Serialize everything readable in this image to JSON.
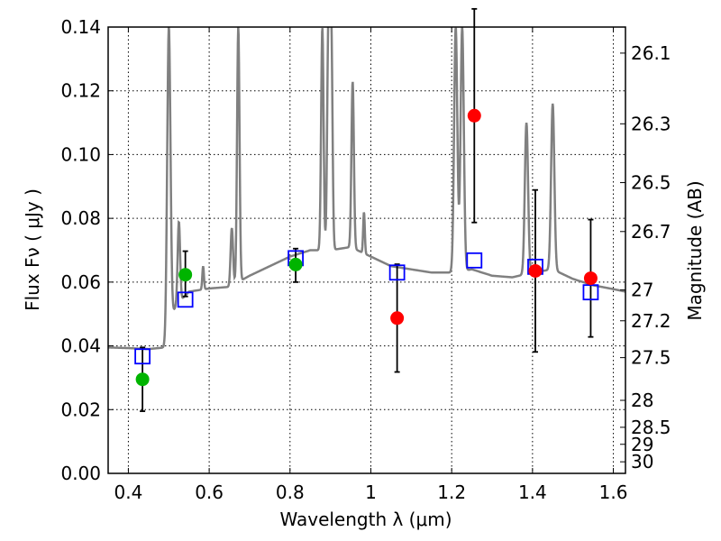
{
  "chart_data": {
    "type": "scatter",
    "xlabel": "Wavelength  λ (μm)",
    "ylabel": "Flux  Fν  ( μJy )",
    "y2label": "Magnitude (AB)",
    "xlim": [
      0.35,
      1.63
    ],
    "ylim": [
      0.0,
      0.14
    ],
    "grid": true,
    "x_ticks": [
      0.4,
      0.6,
      0.8,
      1.0,
      1.2,
      1.4,
      1.6
    ],
    "x_tick_labels": [
      "0.4",
      "0.6",
      "0.8",
      "1",
      "1.2",
      "1.4",
      "1.6"
    ],
    "y_ticks": [
      0.0,
      0.02,
      0.04,
      0.06,
      0.08,
      0.1,
      0.12,
      0.14
    ],
    "y_tick_labels": [
      "0.00",
      "0.02",
      "0.04",
      "0.06",
      "0.08",
      "0.10",
      "0.12",
      "0.14"
    ],
    "mag_ticks": [
      26.1,
      26.3,
      26.5,
      26.7,
      27,
      27.2,
      27.5,
      28,
      28.5,
      29,
      30
    ],
    "mag_tick_labels": [
      "26.1",
      "26.3",
      "26.5",
      "26.7",
      "27",
      "27.2",
      "27.5",
      "28",
      "28.5",
      "29",
      "30"
    ],
    "colors": {
      "sed": "#808080",
      "model": "#0000ff",
      "green": "#00b400",
      "red": "#ff0000",
      "error": "#000000"
    },
    "series": [
      {
        "marker": "circle",
        "color": "#00b400",
        "points": [
          {
            "x": 0.435,
            "y": 0.0295,
            "err_low": 0.0195,
            "err_high": 0.0395
          },
          {
            "x": 0.541,
            "y": 0.0623,
            "err_low": 0.0555,
            "err_high": 0.0697
          },
          {
            "x": 0.814,
            "y": 0.0655,
            "err_low": 0.06,
            "err_high": 0.0705
          }
        ]
      },
      {
        "marker": "circle",
        "color": "#ff0000",
        "points": [
          {
            "x": 1.065,
            "y": 0.0487,
            "err_low": 0.0318,
            "err_high": 0.0656
          },
          {
            "x": 1.256,
            "y": 0.1122,
            "err_low": 0.0787,
            "err_high": 0.1457
          },
          {
            "x": 1.407,
            "y": 0.0635,
            "err_low": 0.0381,
            "err_high": 0.0889
          },
          {
            "x": 1.544,
            "y": 0.0612,
            "err_low": 0.0428,
            "err_high": 0.0796
          }
        ]
      },
      {
        "marker": "open-square",
        "color": "#0000ff",
        "points": [
          {
            "x": 0.435,
            "y": 0.0367
          },
          {
            "x": 0.541,
            "y": 0.0545
          },
          {
            "x": 0.814,
            "y": 0.0675
          },
          {
            "x": 1.065,
            "y": 0.063
          },
          {
            "x": 1.256,
            "y": 0.0668
          },
          {
            "x": 1.407,
            "y": 0.0648
          },
          {
            "x": 1.544,
            "y": 0.0568
          }
        ]
      }
    ],
    "sed_continuum": [
      [
        0.35,
        0.0395
      ],
      [
        0.4,
        0.0393
      ],
      [
        0.45,
        0.039
      ],
      [
        0.49,
        0.0395
      ],
      [
        0.498,
        0.04
      ],
      [
        0.505,
        0.049
      ],
      [
        0.52,
        0.053
      ],
      [
        0.55,
        0.057
      ],
      [
        0.6,
        0.058
      ],
      [
        0.65,
        0.0585
      ],
      [
        0.7,
        0.062
      ],
      [
        0.75,
        0.065
      ],
      [
        0.8,
        0.068
      ],
      [
        0.85,
        0.07
      ],
      [
        0.9,
        0.07
      ],
      [
        0.95,
        0.071
      ],
      [
        1.0,
        0.068
      ],
      [
        1.05,
        0.065
      ],
      [
        1.1,
        0.064
      ],
      [
        1.15,
        0.063
      ],
      [
        1.2,
        0.063
      ],
      [
        1.25,
        0.064
      ],
      [
        1.3,
        0.062
      ],
      [
        1.35,
        0.0615
      ],
      [
        1.4,
        0.063
      ],
      [
        1.45,
        0.064
      ],
      [
        1.5,
        0.061
      ],
      [
        1.55,
        0.059
      ],
      [
        1.6,
        0.0578
      ],
      [
        1.63,
        0.057
      ]
    ],
    "sed_lines": [
      {
        "x": 0.5,
        "peak": 0.14,
        "w": 0.004
      },
      {
        "x": 0.525,
        "peak": 0.079,
        "w": 0.003
      },
      {
        "x": 0.585,
        "peak": 0.065,
        "w": 0.002
      },
      {
        "x": 0.656,
        "peak": 0.077,
        "w": 0.003
      },
      {
        "x": 0.672,
        "peak": 0.14,
        "w": 0.003
      },
      {
        "x": 0.88,
        "peak": 0.14,
        "w": 0.003
      },
      {
        "x": 0.895,
        "peak": 0.14,
        "w": 0.003
      },
      {
        "x": 0.902,
        "peak": 0.14,
        "w": 0.003
      },
      {
        "x": 0.955,
        "peak": 0.123,
        "w": 0.003
      },
      {
        "x": 0.983,
        "peak": 0.082,
        "w": 0.002
      },
      {
        "x": 1.21,
        "peak": 0.14,
        "w": 0.004
      },
      {
        "x": 1.226,
        "peak": 0.14,
        "w": 0.004
      },
      {
        "x": 1.385,
        "peak": 0.11,
        "w": 0.004
      },
      {
        "x": 1.45,
        "peak": 0.116,
        "w": 0.004
      }
    ]
  }
}
